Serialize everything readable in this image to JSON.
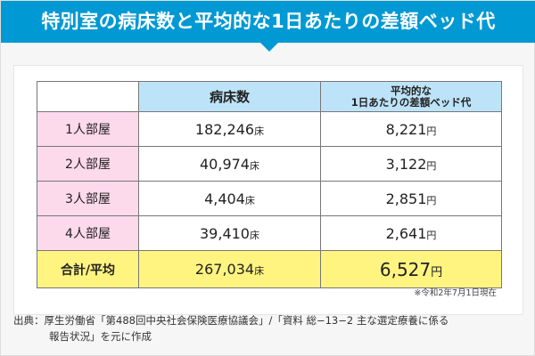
{
  "title": "特別室の病床数と平均的な1日あたりの差額ベッド代",
  "table": {
    "headers": [
      "",
      "病床数",
      "平均的な",
      "1日あたりの差額ベッド代"
    ],
    "bed_unit": "床",
    "yen_unit": "円",
    "rows": [
      {
        "label": "1人部屋",
        "beds": "182,246",
        "fee": "8,221"
      },
      {
        "label": "2人部屋",
        "beds": "40,974",
        "fee": "3,122"
      },
      {
        "label": "3人部屋",
        "beds": "4,404",
        "fee": "2,851"
      },
      {
        "label": "4人部屋",
        "beds": "39,410",
        "fee": "2,641"
      }
    ],
    "total": {
      "label": "合計/平均",
      "beds": "267,034",
      "fee": "6,527"
    }
  },
  "note": "※令和2年7月1日現在",
  "source": {
    "line1": "出典：厚生労働省「第488回中央社会保険医療協議会」/「資料 総−13−2 主な選定療養に係る",
    "line2": "報告状況」を元に作成"
  },
  "colors": {
    "title_bg": "#0099d3",
    "header_bg": "#bde3f8",
    "label_bg": "#fdd9ec",
    "total_bg": "#fff480"
  }
}
